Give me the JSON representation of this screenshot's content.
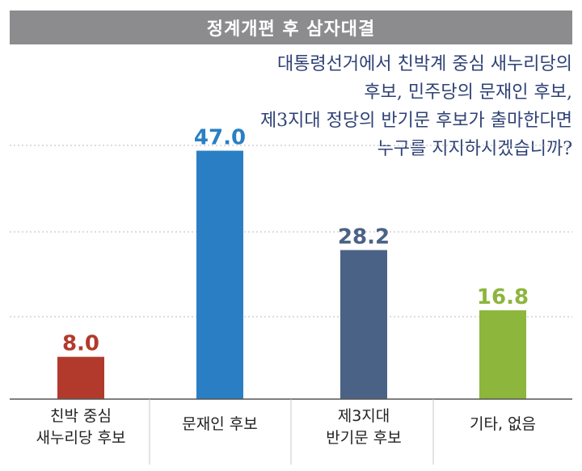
{
  "header": {
    "title": "정계개편 후 삼자대결"
  },
  "question": {
    "lines": [
      "대통령선거에서 친박계 중심 새누리당의",
      "후보, 민주당의 문재인 후보,",
      "제3지대 정당의 반기문 후보가 출마한다면",
      "누구를 지지하시겠습니까?"
    ]
  },
  "chart_data": {
    "type": "bar",
    "title": "",
    "xlabel": "",
    "ylabel": "",
    "categories": [
      [
        "친박 중심",
        "새누리당 후보"
      ],
      [
        "문재인 후보"
      ],
      [
        "제3지대",
        "반기문 후보"
      ],
      [
        "기타, 없음"
      ]
    ],
    "values": [
      8.0,
      47.0,
      28.2,
      16.8
    ],
    "value_labels": [
      "8.0",
      "47.0",
      "28.2",
      "16.8"
    ],
    "colors": [
      "#b23a2c",
      "#2a7fc4",
      "#4a6285",
      "#8cb63c"
    ],
    "ylim": [
      0,
      48
    ],
    "grid": true
  }
}
